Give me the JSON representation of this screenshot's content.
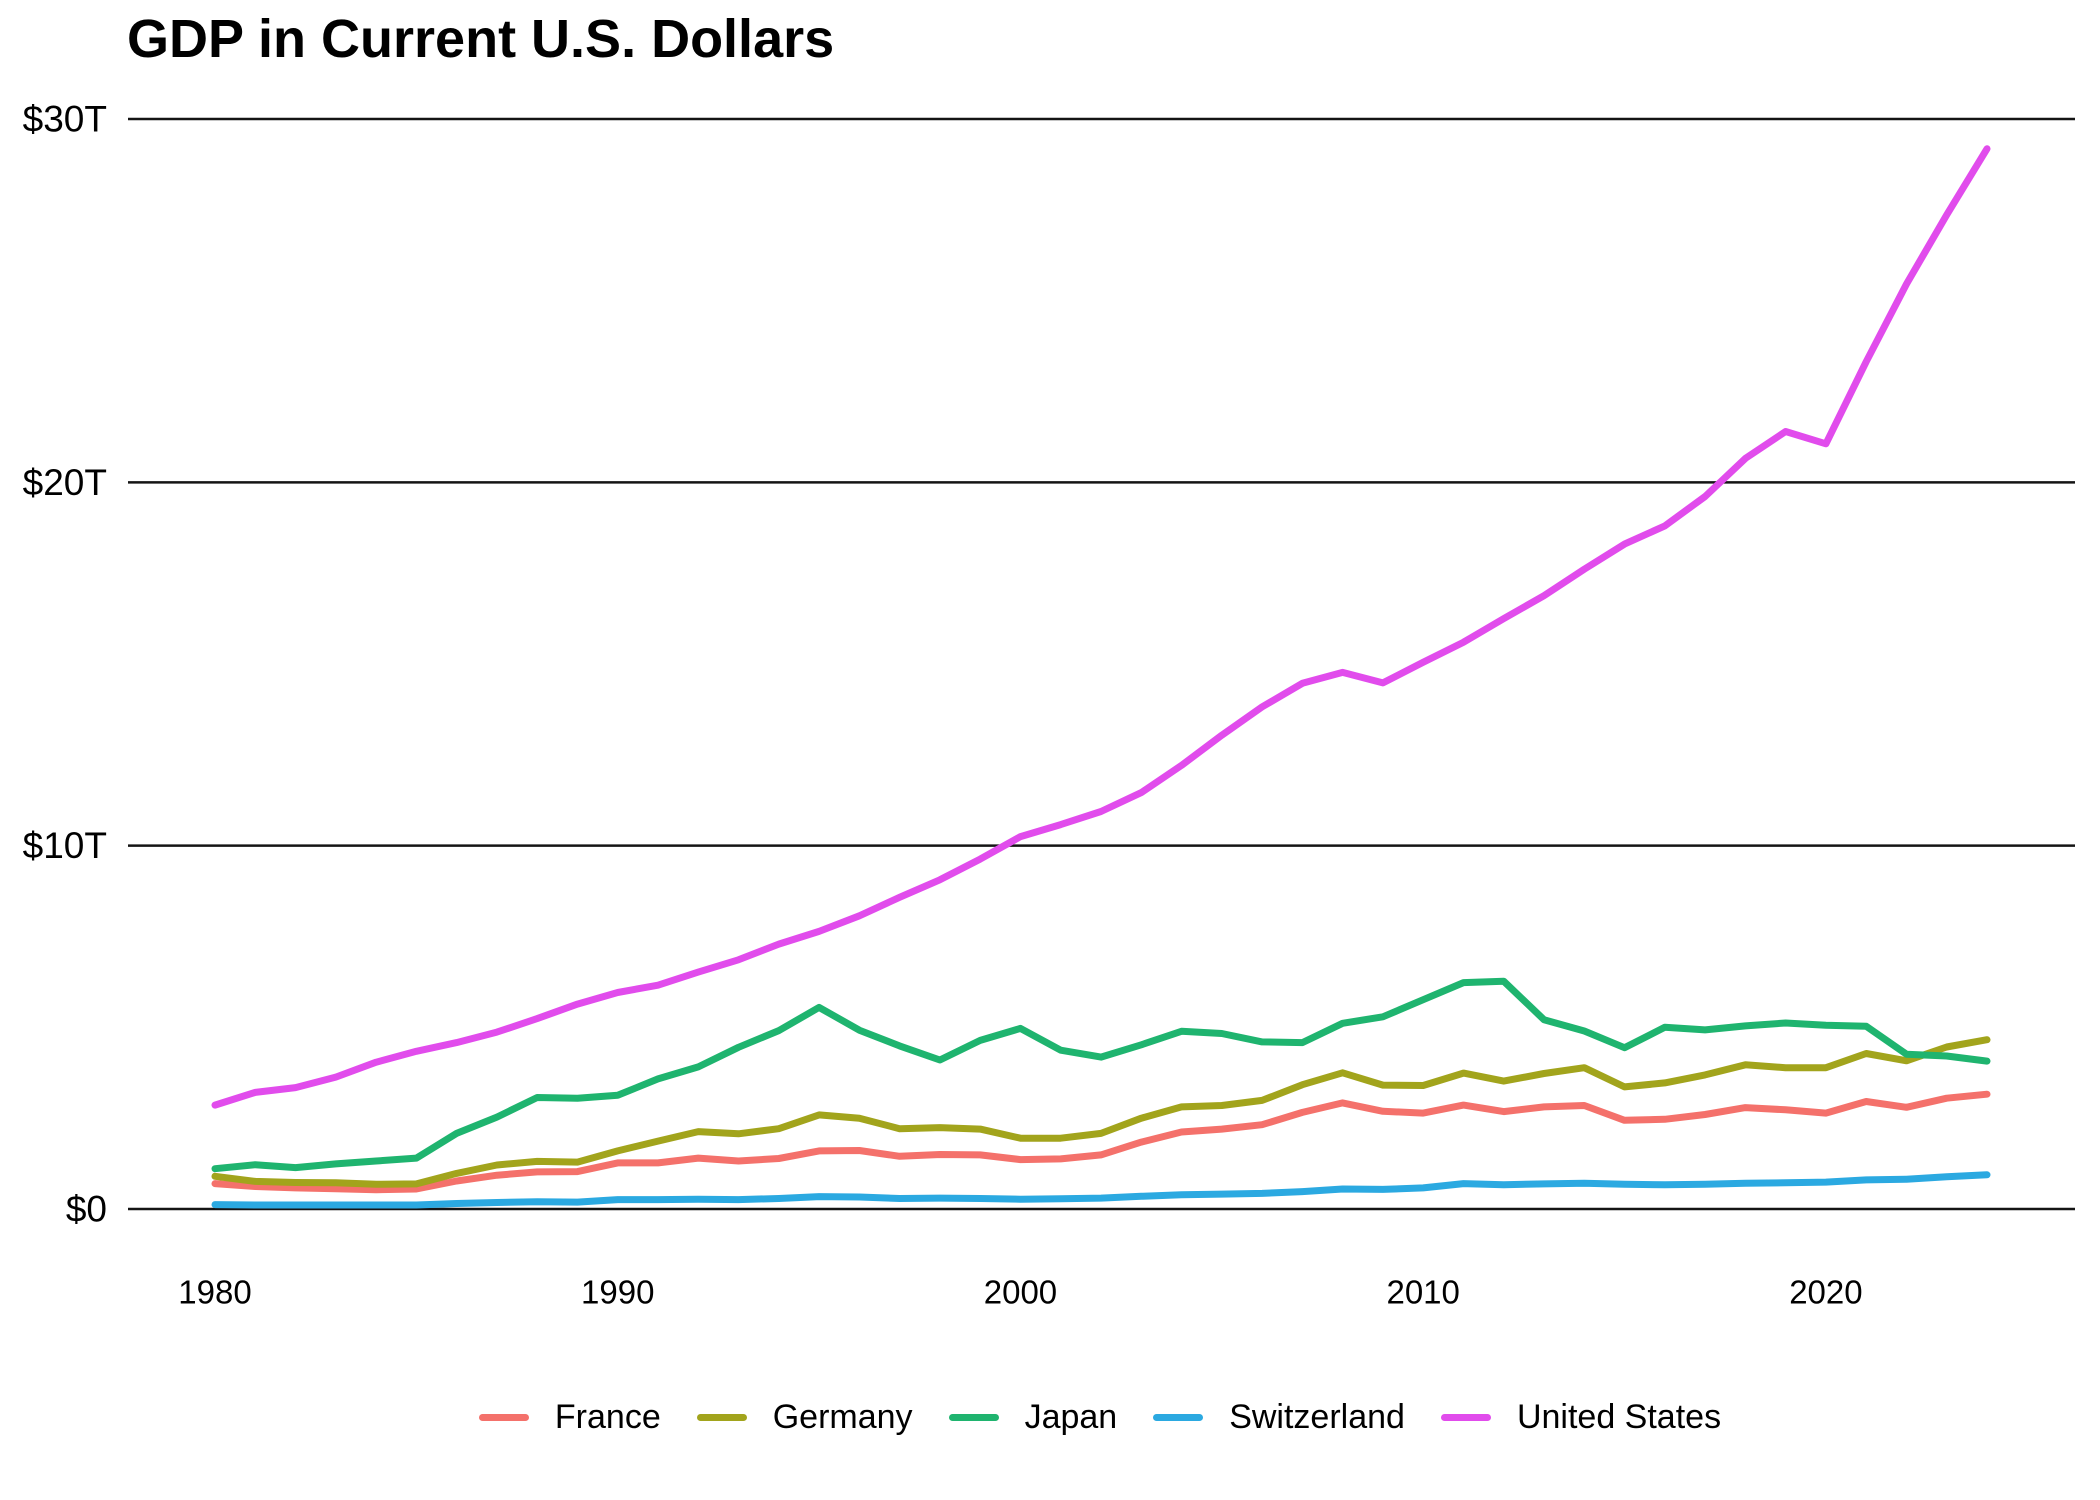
{
  "title": "GDP in Current U.S. Dollars",
  "chart_data": {
    "type": "line",
    "title": "GDP in Current U.S. Dollars",
    "xlabel": "",
    "ylabel": "",
    "xlim": [
      1980,
      2024
    ],
    "ylim": [
      0,
      30
    ],
    "grid": "horizontal-major-black",
    "legend_position": "bottom-center",
    "y_ticks": [
      {
        "value": 0,
        "label": "$0"
      },
      {
        "value": 10,
        "label": "$10T"
      },
      {
        "value": 20,
        "label": "$20T"
      },
      {
        "value": 30,
        "label": "$30T"
      }
    ],
    "x_ticks": [
      {
        "value": 1980,
        "label": "1980"
      },
      {
        "value": 1990,
        "label": "1990"
      },
      {
        "value": 2000,
        "label": "2000"
      },
      {
        "value": 2010,
        "label": "2010"
      },
      {
        "value": 2020,
        "label": "2020"
      }
    ],
    "x": [
      1980,
      1981,
      1982,
      1983,
      1984,
      1985,
      1986,
      1987,
      1988,
      1989,
      1990,
      1991,
      1992,
      1993,
      1994,
      1995,
      1996,
      1997,
      1998,
      1999,
      2000,
      2001,
      2002,
      2003,
      2004,
      2005,
      2006,
      2007,
      2008,
      2009,
      2010,
      2011,
      2012,
      2013,
      2014,
      2015,
      2016,
      2017,
      2018,
      2019,
      2020,
      2021,
      2022,
      2023,
      2024
    ],
    "unit_hint": "trillions of current U.S. dollars",
    "series": [
      {
        "name": "France",
        "color": "#F4716B",
        "values": [
          0.7,
          0.62,
          0.58,
          0.56,
          0.53,
          0.55,
          0.77,
          0.93,
          1.02,
          1.03,
          1.27,
          1.27,
          1.4,
          1.32,
          1.39,
          1.6,
          1.61,
          1.45,
          1.5,
          1.49,
          1.36,
          1.38,
          1.49,
          1.84,
          2.12,
          2.2,
          2.32,
          2.66,
          2.92,
          2.69,
          2.64,
          2.86,
          2.68,
          2.81,
          2.85,
          2.44,
          2.47,
          2.6,
          2.79,
          2.73,
          2.64,
          2.96,
          2.8,
          3.05,
          3.16
        ]
      },
      {
        "name": "Germany",
        "color": "#A2A41C",
        "values": [
          0.9,
          0.76,
          0.73,
          0.72,
          0.68,
          0.69,
          0.98,
          1.21,
          1.31,
          1.29,
          1.6,
          1.87,
          2.13,
          2.07,
          2.21,
          2.59,
          2.5,
          2.21,
          2.24,
          2.2,
          1.95,
          1.95,
          2.08,
          2.5,
          2.81,
          2.85,
          2.99,
          3.42,
          3.75,
          3.41,
          3.4,
          3.74,
          3.52,
          3.73,
          3.89,
          3.36,
          3.47,
          3.69,
          3.97,
          3.89,
          3.89,
          4.28,
          4.08,
          4.46,
          4.66
        ]
      },
      {
        "name": "Japan",
        "color": "#1FB46F",
        "values": [
          1.11,
          1.22,
          1.14,
          1.24,
          1.32,
          1.4,
          2.08,
          2.53,
          3.07,
          3.05,
          3.13,
          3.58,
          3.91,
          4.45,
          4.91,
          5.55,
          4.92,
          4.49,
          4.1,
          4.64,
          4.97,
          4.37,
          4.18,
          4.52,
          4.89,
          4.83,
          4.6,
          4.58,
          5.11,
          5.29,
          5.76,
          6.23,
          6.27,
          5.21,
          4.9,
          4.44,
          5.0,
          4.93,
          5.04,
          5.12,
          5.06,
          5.03,
          4.26,
          4.21,
          4.07
        ]
      },
      {
        "name": "Switzerland",
        "color": "#2BA9E1",
        "values": [
          0.12,
          0.11,
          0.11,
          0.11,
          0.11,
          0.11,
          0.15,
          0.18,
          0.2,
          0.19,
          0.26,
          0.26,
          0.27,
          0.26,
          0.29,
          0.34,
          0.33,
          0.29,
          0.3,
          0.29,
          0.27,
          0.28,
          0.3,
          0.35,
          0.39,
          0.41,
          0.43,
          0.48,
          0.55,
          0.54,
          0.58,
          0.7,
          0.67,
          0.69,
          0.71,
          0.68,
          0.67,
          0.68,
          0.71,
          0.72,
          0.74,
          0.8,
          0.82,
          0.89,
          0.94
        ]
      },
      {
        "name": "United States",
        "color": "#E14CEC",
        "values": [
          2.86,
          3.21,
          3.34,
          3.63,
          4.04,
          4.34,
          4.58,
          4.87,
          5.24,
          5.64,
          5.96,
          6.16,
          6.52,
          6.86,
          7.29,
          7.64,
          8.07,
          8.58,
          9.06,
          9.63,
          10.25,
          10.58,
          10.94,
          11.46,
          12.21,
          13.04,
          13.82,
          14.47,
          14.77,
          14.48,
          15.05,
          15.6,
          16.25,
          16.88,
          17.61,
          18.3,
          18.8,
          19.61,
          20.66,
          21.4,
          21.06,
          23.32,
          25.46,
          27.36,
          29.18
        ]
      }
    ]
  }
}
